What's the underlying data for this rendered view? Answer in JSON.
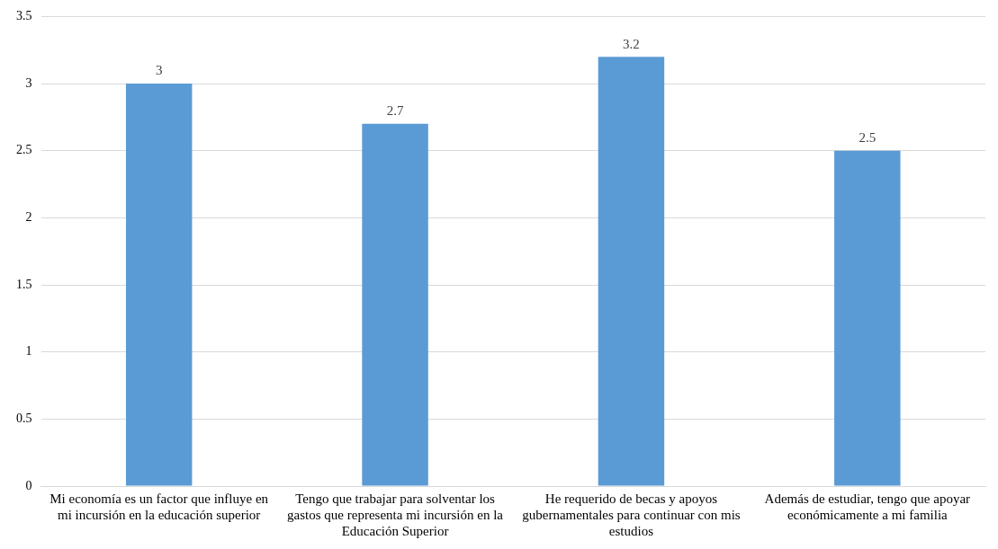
{
  "chart_data": {
    "type": "bar",
    "categories": [
      "Mi economía es un factor que influye en mi incursión en la educación superior",
      "Tengo que trabajar para solventar los gastos que representa mi incursión en la Educación Superior",
      "He requerido de becas y apoyos gubernamentales para continuar con mis estudios",
      "Además de estudiar, tengo que apoyar económicamente a mi familia"
    ],
    "values": [
      3,
      2.7,
      3.2,
      2.5
    ],
    "color": "#5b9bd5",
    "ylim": [
      0,
      3.5
    ],
    "yticks": [
      0,
      0.5,
      1,
      1.5,
      2,
      2.5,
      3,
      3.5
    ],
    "grid": "y",
    "legend": false,
    "data_labels": true
  }
}
